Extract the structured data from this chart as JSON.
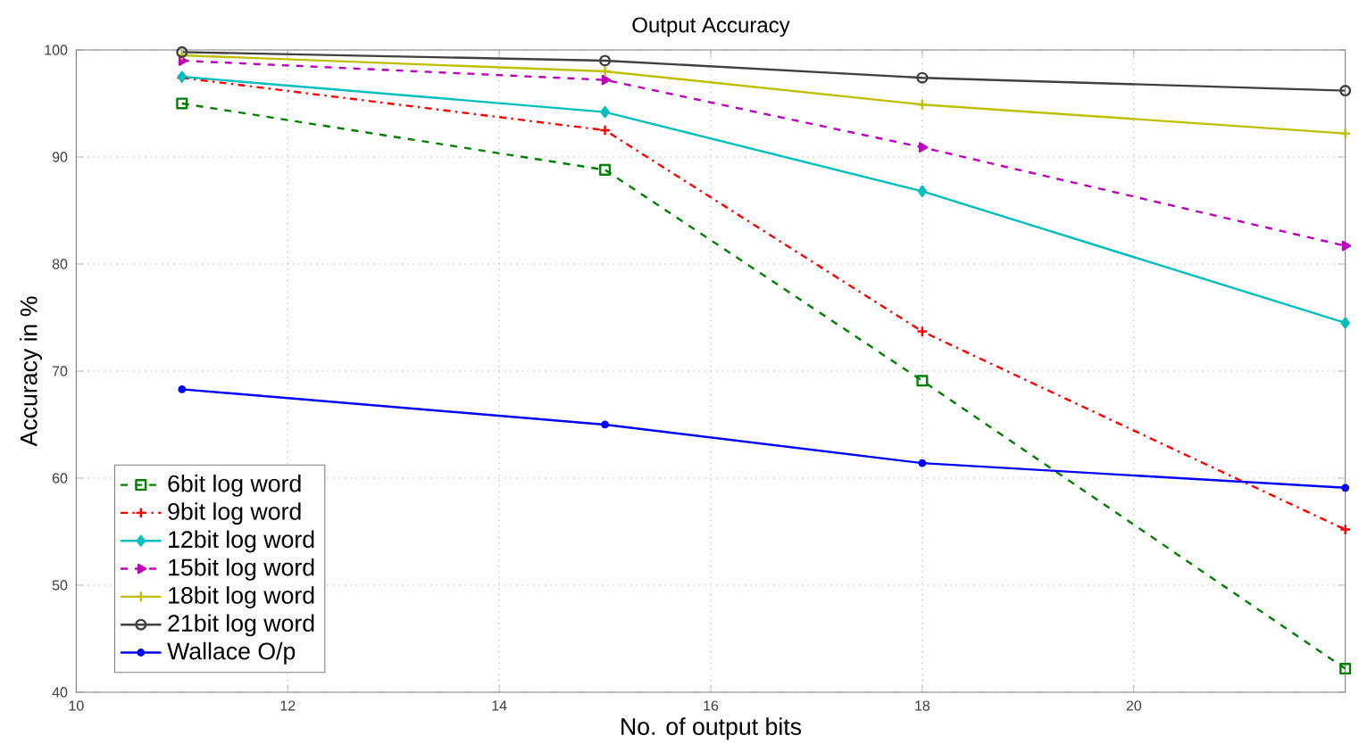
{
  "chart_data": {
    "type": "line",
    "title": "Output Accuracy",
    "xlabel": "No. of output bits",
    "ylabel": "Accuracy in %",
    "x": [
      11,
      15,
      18,
      22
    ],
    "series": [
      {
        "name": "6bit log word",
        "color": "#008000",
        "values": [
          95.0,
          88.8,
          69.1,
          42.2
        ],
        "marker": "square",
        "line_style": "dashed"
      },
      {
        "name": "9bit log word",
        "color": "#ff0000",
        "values": [
          97.4,
          92.5,
          73.7,
          55.2
        ],
        "marker": "cross",
        "line_style": "dashdot"
      },
      {
        "name": "12bit log word",
        "color": "#00bfbf",
        "values": [
          97.5,
          94.2,
          86.8,
          74.5
        ],
        "marker": "diamond",
        "line_style": "solid"
      },
      {
        "name": "15bit log word",
        "color": "#bf00bf",
        "values": [
          99.0,
          97.2,
          90.9,
          81.7
        ],
        "marker": "triangle",
        "line_style": "dashed"
      },
      {
        "name": "18bit log word",
        "color": "#bfbf00",
        "values": [
          99.5,
          98.0,
          94.9,
          92.2
        ],
        "marker": "cross",
        "line_style": "solid"
      },
      {
        "name": "21bit log word",
        "color": "#404040",
        "values": [
          99.8,
          99.0,
          97.4,
          96.2
        ],
        "marker": "circle",
        "line_style": "solid"
      },
      {
        "name": "Wallace O/p",
        "color": "#0000ff",
        "values": [
          68.3,
          65.0,
          61.4,
          59.1
        ],
        "marker": "star",
        "line_style": "solid"
      }
    ],
    "xlim": [
      10,
      22
    ],
    "xticks": [
      10,
      12,
      14,
      16,
      18,
      20
    ],
    "ylim": [
      40,
      100
    ],
    "yticks": [
      40,
      50,
      60,
      70,
      80,
      90,
      100
    ],
    "grid": true,
    "legend": "bottom left"
  }
}
